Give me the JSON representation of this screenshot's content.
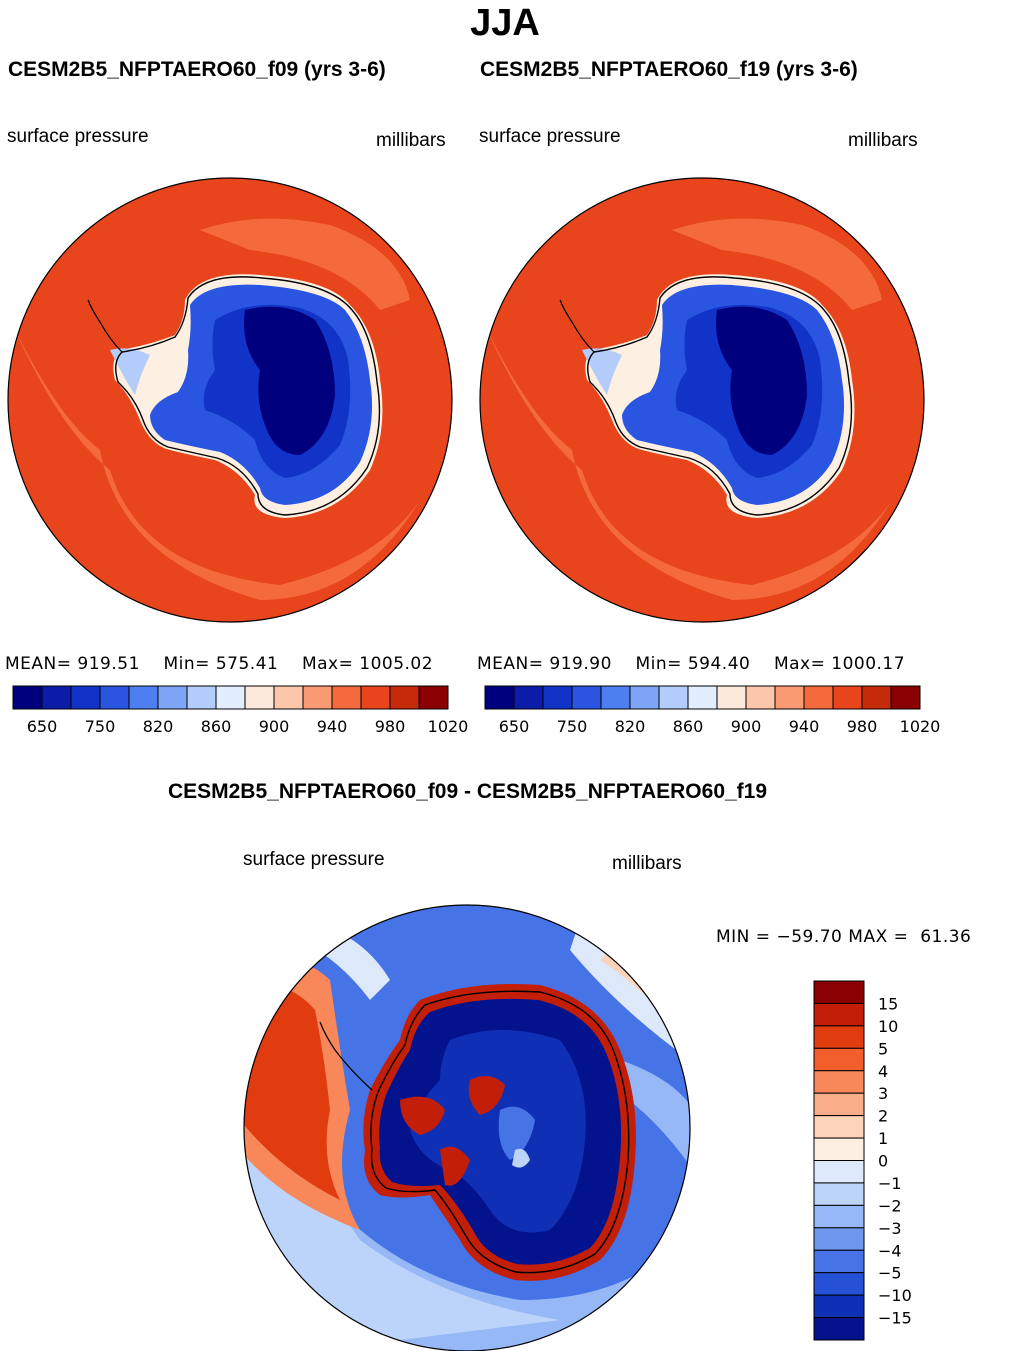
{
  "title": "JJA",
  "panels": [
    {
      "title": "CESM2B5_NFPTAERO60_f09 (yrs 3-6)",
      "variable": "surface pressure",
      "units": "millibars",
      "stats": {
        "mean_label": "MEAN=",
        "mean": "919.51",
        "min_label": "Min=",
        "min": "575.41",
        "max_label": "Max=",
        "max": "1005.02"
      }
    },
    {
      "title": "CESM2B5_NFPTAERO60_f19 (yrs 3-6)",
      "variable": "surface pressure",
      "units": "millibars",
      "stats": {
        "mean_label": "MEAN=",
        "mean": "919.90",
        "min_label": "Min=",
        "min": "594.40",
        "max_label": "Max=",
        "max": "1000.17"
      }
    }
  ],
  "diff_panel": {
    "title": "CESM2B5_NFPTAERO60_f09 - CESM2B5_NFPTAERO60_f19",
    "variable": "surface pressure",
    "units": "millibars",
    "minmax": {
      "min_label": "MIN =",
      "min": "−59.70",
      "max_label": "MAX =",
      "max": "61.36"
    }
  },
  "chart_data": [
    {
      "type": "heatmap",
      "projection": "south polar stereographic",
      "title": "CESM2B5_NFPTAERO60_f09 (yrs 3-6)",
      "field": "surface pressure",
      "units": "millibars",
      "mean": 919.51,
      "min": 575.41,
      "max": 1005.02,
      "colorbar": {
        "orientation": "horizontal",
        "tick_labels": [
          "650",
          "750",
          "820",
          "860",
          "900",
          "940",
          "980",
          "1020"
        ],
        "colors": [
          "#00007f",
          "#0a1ca8",
          "#1233c8",
          "#2a55e0",
          "#4e7ff0",
          "#7fa6f6",
          "#b4ccfa",
          "#e2edfd",
          "#fde8dc",
          "#fcc6ab",
          "#f99a72",
          "#f56a3c",
          "#e8451c",
          "#c82b0c",
          "#8b0000"
        ]
      }
    },
    {
      "type": "heatmap",
      "projection": "south polar stereographic",
      "title": "CESM2B5_NFPTAERO60_f19 (yrs 3-6)",
      "field": "surface pressure",
      "units": "millibars",
      "mean": 919.9,
      "min": 594.4,
      "max": 1000.17,
      "colorbar": {
        "orientation": "horizontal",
        "tick_labels": [
          "650",
          "750",
          "820",
          "860",
          "900",
          "940",
          "980",
          "1020"
        ],
        "colors": [
          "#00007f",
          "#0a1ca8",
          "#1233c8",
          "#2a55e0",
          "#4e7ff0",
          "#7fa6f6",
          "#b4ccfa",
          "#e2edfd",
          "#fde8dc",
          "#fcc6ab",
          "#f99a72",
          "#f56a3c",
          "#e8451c",
          "#c82b0c",
          "#8b0000"
        ]
      }
    },
    {
      "type": "heatmap",
      "projection": "south polar stereographic",
      "title": "CESM2B5_NFPTAERO60_f09 - CESM2B5_NFPTAERO60_f19",
      "field": "surface pressure difference",
      "units": "millibars",
      "min": -59.7,
      "max": 61.36,
      "colorbar": {
        "orientation": "vertical",
        "tick_labels": [
          "15",
          "10",
          "5",
          "4",
          "3",
          "2",
          "1",
          "0",
          "−1",
          "−2",
          "−3",
          "−4",
          "−5",
          "−10",
          "−15"
        ],
        "colors": [
          "#8b0000",
          "#c21e08",
          "#e03c10",
          "#f25f2c",
          "#f8875a",
          "#fbae8a",
          "#fdd3ba",
          "#fdf0e3",
          "#dde9fb",
          "#bcd3fa",
          "#97b8f6",
          "#6e98f0",
          "#4673e6",
          "#2551d6",
          "#0f30b5",
          "#03138e"
        ]
      }
    }
  ]
}
